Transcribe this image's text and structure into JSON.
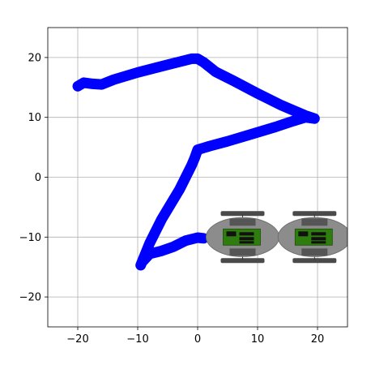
{
  "chart_data": {
    "type": "line",
    "title": "",
    "xlabel": "",
    "ylabel": "",
    "xlim": [
      -25,
      25
    ],
    "ylim": [
      -25,
      25
    ],
    "grid": true,
    "xticks": [
      -20,
      -10,
      0,
      10,
      20
    ],
    "yticks": [
      -20,
      -10,
      0,
      10,
      20
    ],
    "xtick_labels": [
      "−20",
      "−10",
      "0",
      "10",
      "20"
    ],
    "ytick_labels": [
      "−20",
      "−10",
      "0",
      "10",
      "20"
    ],
    "series": [
      {
        "color": "#0000ff",
        "x": [
          -20,
          -19,
          -17.5,
          -16,
          -14,
          -10,
          -5,
          -1,
          0,
          1,
          3,
          6,
          10,
          14,
          18,
          19.5,
          18,
          16,
          13,
          9,
          5,
          2,
          0,
          -0.5,
          -1,
          -3,
          -6,
          -8,
          -9.5,
          -9.3,
          -8,
          -6,
          -4,
          -2,
          0,
          1
        ],
        "y": [
          15.2,
          15.8,
          15.6,
          15.5,
          16.3,
          17.5,
          18.8,
          19.8,
          19.8,
          19.2,
          17.6,
          16.1,
          14,
          12,
          10.3,
          9.8,
          10,
          9.4,
          8.4,
          7.2,
          6,
          5.2,
          4.6,
          3.2,
          2,
          -2,
          -7,
          -11,
          -14.7,
          -14.2,
          -12.8,
          -12.3,
          -11.6,
          -10.6,
          -10.1,
          -10.2
        ]
      }
    ],
    "overlays": [
      {
        "icon": "robot-icon",
        "x": 7.5,
        "y": -10
      },
      {
        "icon": "robot-icon",
        "x": 19.5,
        "y": -10
      }
    ]
  }
}
